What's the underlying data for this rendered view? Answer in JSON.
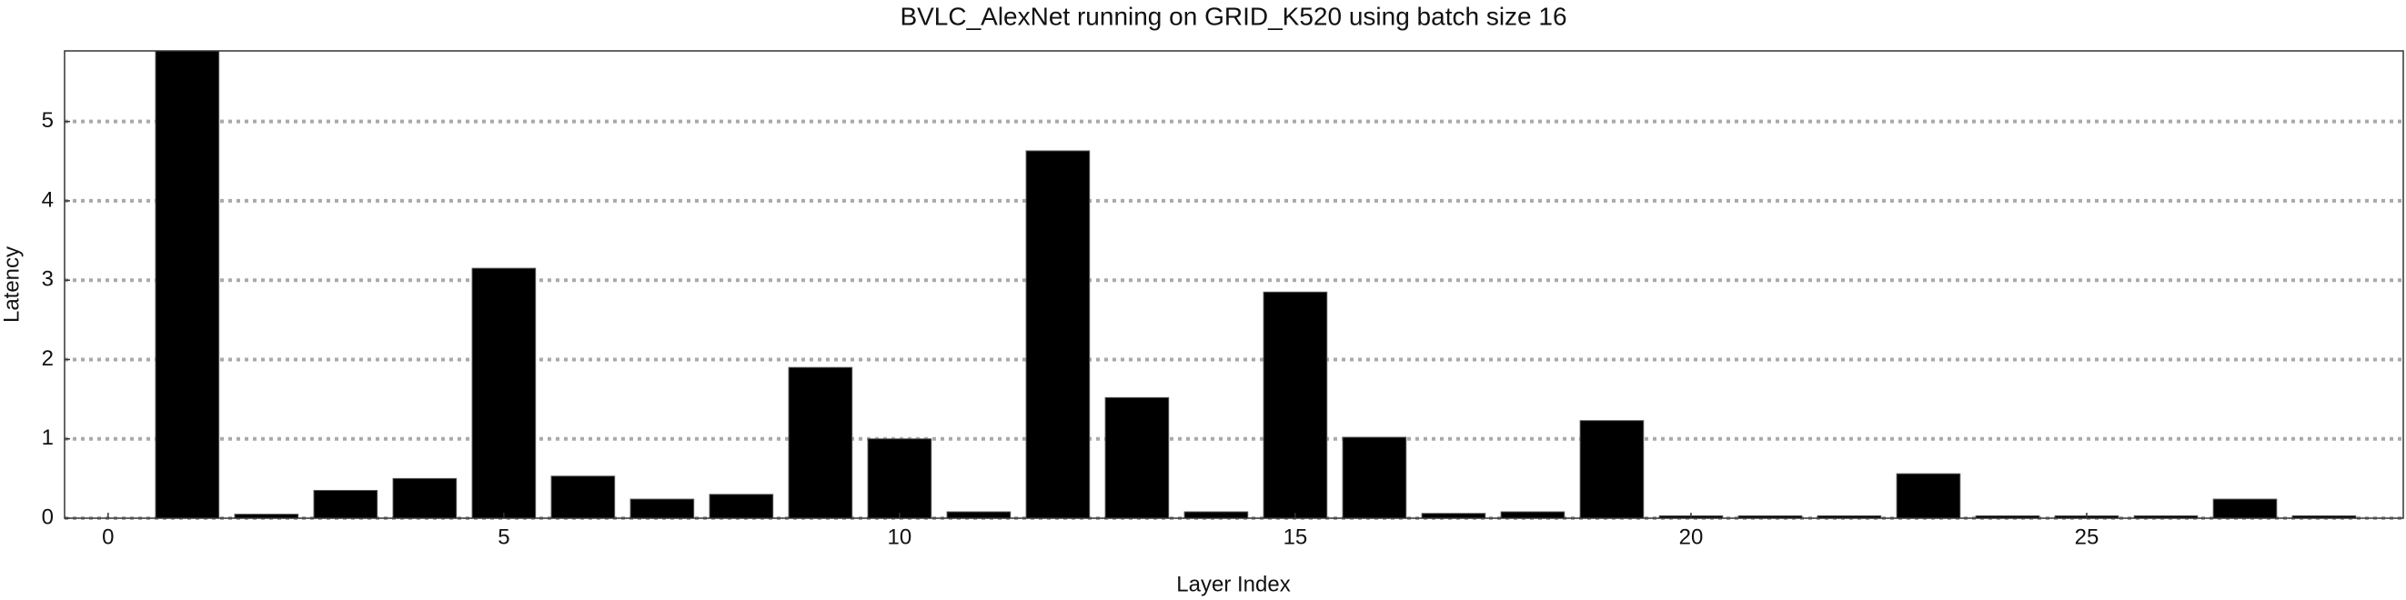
{
  "chart_data": {
    "type": "bar",
    "title": "BVLC_AlexNet running on GRID_K520 using batch size 16",
    "x_label": "Layer Index",
    "y_label": "Latency",
    "x": [
      1,
      2,
      3,
      4,
      5,
      6,
      7,
      8,
      9,
      10,
      11,
      12,
      13,
      14,
      15,
      16,
      17,
      18,
      19,
      20,
      21,
      22,
      23,
      24,
      25,
      26,
      27,
      28
    ],
    "values": [
      5.9,
      0.05,
      0.35,
      0.5,
      3.15,
      0.53,
      0.24,
      0.3,
      1.9,
      1.0,
      0.08,
      4.63,
      1.52,
      0.08,
      2.85,
      1.02,
      0.06,
      0.08,
      1.23,
      0.03,
      0.03,
      0.03,
      0.56,
      0.03,
      0.03,
      0.03,
      0.24,
      0.03
    ],
    "color": "#000000",
    "xlim": [
      -0.55,
      29
    ],
    "ylim": [
      0,
      5.89
    ],
    "xticks": [
      0,
      5,
      10,
      15,
      20,
      25
    ],
    "yticks": [
      0,
      1,
      2,
      3,
      4,
      5
    ],
    "grid": true
  }
}
